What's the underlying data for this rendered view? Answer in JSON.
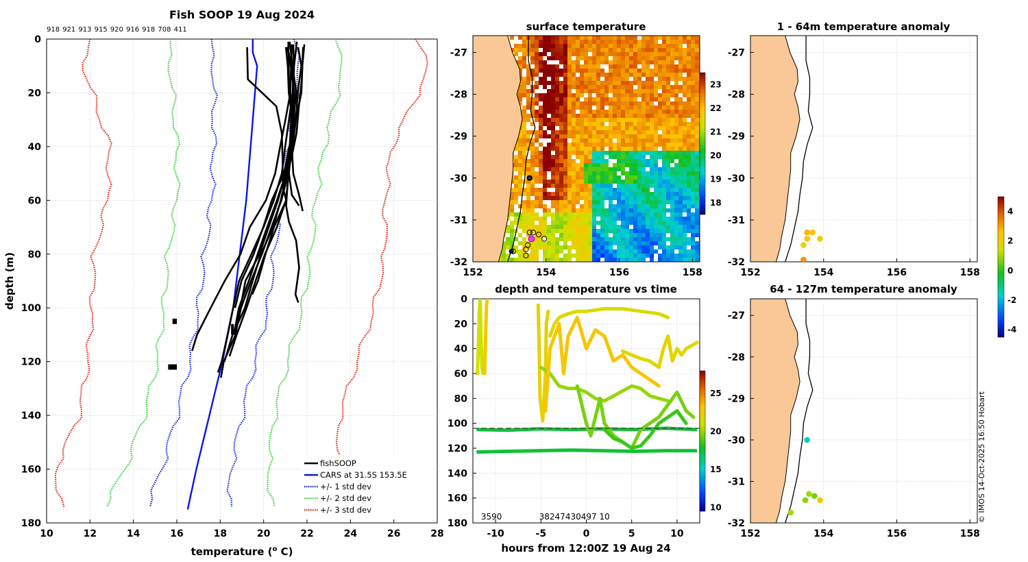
{
  "title": "Fish SOOP 19 Aug 2024",
  "copyright": "© IMOS 14-Oct-2025 16:50 Hobart",
  "chart_data": [
    {
      "id": "profile",
      "type": "line",
      "title": "Fish SOOP 19 Aug 2024",
      "xlabel": "temperature (",
      "xlabel_sup": "o",
      "xlabel_end": " C)",
      "ylabel": "depth (m)",
      "xlim": [
        10,
        28
      ],
      "ylim": [
        180,
        0
      ],
      "xticks": [
        10,
        12,
        14,
        16,
        18,
        20,
        22,
        24,
        26,
        28
      ],
      "yticks": [
        0,
        20,
        40,
        60,
        80,
        100,
        120,
        140,
        160,
        180
      ],
      "top_labels": [
        "918",
        "921",
        "913",
        "915",
        "920",
        "916",
        "918",
        "708",
        "411"
      ],
      "legend": [
        "fishSOOP",
        "CARS at 31.5S 153.5E",
        "+/- 1 std dev",
        "+/- 2 std dev",
        "+/- 3 std dev"
      ],
      "colors": {
        "fish": "#000000",
        "cars": "#0a14e6",
        "std1": "#0a14e6",
        "std2": "#33cc33",
        "std3": "#e61a0a"
      },
      "cars_mean": {
        "depth": [
          0,
          5,
          10,
          20,
          40,
          60,
          80,
          100,
          120,
          140,
          160,
          175
        ],
        "temp": [
          19.5,
          19.5,
          19.7,
          19.6,
          19.4,
          19.2,
          18.9,
          18.6,
          18.1,
          17.5,
          16.9,
          16.5
        ]
      },
      "std_offsets": {
        "depth": [
          0,
          10,
          20,
          40,
          60,
          80,
          100,
          120,
          140,
          160,
          175
        ],
        "s1": [
          1.9,
          2.0,
          1.9,
          1.7,
          1.6,
          1.6,
          1.6,
          1.5,
          1.5,
          1.6,
          1.9
        ],
        "s2": [
          3.8,
          4.0,
          3.8,
          3.4,
          3.2,
          3.3,
          3.2,
          3.0,
          3.0,
          3.3,
          3.9
        ],
        "s3": [
          7.5,
          8.0,
          7.5,
          6.5,
          6.4,
          6.7,
          6.5,
          6.2,
          6.0,
          6.5,
          5.8
        ]
      },
      "fish_profiles": [
        {
          "depth": [
            1,
            10,
            20,
            30,
            40,
            50,
            58,
            62
          ],
          "temp": [
            21.2,
            21.3,
            21.4,
            21.3,
            21.2,
            21.2,
            21.3,
            21.6
          ]
        },
        {
          "depth": [
            1,
            10,
            20,
            30,
            40,
            50,
            58,
            64
          ],
          "temp": [
            21.5,
            21.4,
            21.4,
            21.3,
            21.3,
            21.4,
            21.6,
            21.8
          ]
        },
        {
          "depth": [
            1,
            15,
            25,
            35,
            45,
            55,
            62,
            68,
            75,
            85,
            95,
            98
          ],
          "temp": [
            21.1,
            21.2,
            21.3,
            21.2,
            21.2,
            21.1,
            21.0,
            21.2,
            21.5,
            21.6,
            21.5,
            21.6
          ]
        },
        {
          "depth": [
            2,
            10,
            20,
            30,
            40,
            50,
            60,
            70,
            80,
            90,
            100,
            110,
            116
          ],
          "temp": [
            21.3,
            21.3,
            21.2,
            21.0,
            20.8,
            20.5,
            20.1,
            19.4,
            18.9,
            18.2,
            17.6,
            16.9,
            16.7
          ]
        },
        {
          "depth": [
            2,
            10,
            20,
            30,
            40,
            50,
            60,
            70,
            80,
            90,
            100,
            110,
            120,
            124
          ],
          "temp": [
            21.4,
            21.4,
            21.3,
            21.2,
            21.0,
            20.8,
            20.5,
            20.0,
            19.4,
            18.9,
            18.6,
            18.3,
            18.1,
            17.9
          ]
        },
        {
          "depth": [
            3,
            10,
            20,
            30,
            40,
            50,
            60,
            70,
            80,
            90,
            100,
            110,
            120,
            126
          ],
          "temp": [
            21.1,
            21.3,
            21.5,
            21.4,
            21.2,
            21.0,
            20.7,
            20.2,
            19.8,
            19.2,
            18.9,
            18.7,
            18.2,
            18.0
          ]
        },
        {
          "depth": [
            3,
            10,
            20,
            30,
            40,
            50,
            60,
            70,
            80,
            90,
            100,
            110,
            120
          ],
          "temp": [
            21.6,
            21.7,
            21.6,
            21.5,
            21.3,
            21.1,
            20.8,
            20.4,
            19.9,
            19.5,
            19.1,
            18.6,
            18.2
          ]
        },
        {
          "depth": [
            3,
            10,
            20,
            30,
            40,
            50,
            60,
            70,
            80,
            90,
            100,
            110,
            118
          ],
          "temp": [
            21.0,
            21.1,
            21.2,
            21.3,
            21.3,
            21.2,
            21.0,
            20.6,
            20.1,
            19.6,
            19.2,
            18.8,
            18.4
          ]
        },
        {
          "depth": [
            3,
            15,
            25,
            35,
            45,
            55,
            60,
            70,
            80,
            90,
            95
          ],
          "temp": [
            19.2,
            19.3,
            20.6,
            20.8,
            20.9,
            20.9,
            21.0,
            20.5,
            20.1,
            19.7,
            19.5
          ]
        },
        {
          "depth": [
            3,
            15,
            25,
            35,
            45,
            50,
            60,
            70,
            80,
            90,
            100,
            110
          ],
          "temp": [
            21.8,
            21.8,
            21.6,
            21.5,
            21.3,
            21.0,
            20.6,
            20.2,
            19.7,
            19.3,
            18.9,
            18.6
          ]
        },
        {
          "depth": [
            2,
            10,
            20,
            30,
            40,
            50,
            60,
            70,
            80,
            90,
            100
          ],
          "temp": [
            21.9,
            21.8,
            21.7,
            21.5,
            21.2,
            20.9,
            20.4,
            20.0,
            19.5,
            19.0,
            18.7
          ]
        },
        {
          "depth": [
            5,
            20,
            30,
            40,
            50,
            60,
            70,
            80,
            90,
            100,
            105
          ],
          "temp": [
            21.2,
            21.4,
            21.4,
            21.3,
            21.1,
            20.8,
            20.4,
            19.9,
            19.4,
            19.0,
            18.8
          ]
        }
      ],
      "fish_blobs": [
        {
          "depth": [
            104,
            106
          ],
          "temp": [
            15.8,
            16.0
          ]
        },
        {
          "depth": [
            121,
            123
          ],
          "temp": [
            15.6,
            16.0
          ]
        },
        {
          "depth": [
            106,
            110
          ],
          "temp": [
            18.5,
            18.6
          ]
        }
      ]
    },
    {
      "id": "sst",
      "type": "heatmap",
      "title": "surface temperature",
      "xlim": [
        152,
        158.2
      ],
      "ylim": [
        -32,
        -26.6
      ],
      "xticks": [
        152,
        154,
        156,
        158
      ],
      "yticks": [
        -27,
        -28,
        -29,
        -30,
        -31,
        -32
      ],
      "colorbar": {
        "min": 17.5,
        "max": 23.5,
        "ticks": [
          18,
          19,
          20,
          21,
          22,
          23
        ]
      },
      "stations": [
        {
          "lon": 153.55,
          "lat": -31.3
        },
        {
          "lon": 153.65,
          "lat": -31.3
        },
        {
          "lon": 153.8,
          "lat": -31.35
        },
        {
          "lon": 153.95,
          "lat": -31.45
        },
        {
          "lon": 153.5,
          "lat": -31.6
        },
        {
          "lon": 153.45,
          "lat": -31.7
        },
        {
          "lon": 153.1,
          "lat": -31.75
        },
        {
          "lon": 153.55,
          "lat": -30.0
        },
        {
          "lon": 153.45,
          "lat": -31.85
        }
      ],
      "latest": {
        "lon": 153.6,
        "lat": -31.45
      }
    },
    {
      "id": "depth_time",
      "type": "scatter",
      "title": "depth and temperature vs time",
      "xlabel": "hours from 12:00Z 19 Aug 24",
      "xlim": [
        -12.5,
        12.5
      ],
      "ylim": [
        180,
        0
      ],
      "xticks": [
        -10,
        -5,
        0,
        5,
        10
      ],
      "yticks": [
        0,
        20,
        40,
        60,
        80,
        100,
        120,
        140,
        160,
        180
      ],
      "colorbar": {
        "min": 9.5,
        "max": 28,
        "ticks": [
          10,
          15,
          20,
          25
        ]
      },
      "dashed_depth": 104,
      "bottom_labels": [
        {
          "hour": -11.6,
          "text": "3590"
        },
        {
          "hour": -5.2,
          "text": "38247430497 10"
        }
      ],
      "tracks": [
        {
          "temp": 21.0,
          "hour": [
            -12.0,
            -11.9,
            -11.8,
            -11.7,
            -11.6,
            -11.5,
            -11.4
          ],
          "depth": [
            60,
            40,
            10,
            0,
            30,
            55,
            60
          ]
        },
        {
          "temp": 22.5,
          "hour": [
            -11.2,
            -11.1,
            -11.0,
            -10.9
          ],
          "depth": [
            60,
            30,
            5,
            0
          ]
        },
        {
          "temp": 22.0,
          "hour": [
            -5.3,
            -5.2,
            -5.1,
            -4.8,
            -4.5,
            -4.4,
            -4.2
          ],
          "depth": [
            5,
            40,
            80,
            98,
            60,
            20,
            10
          ]
        },
        {
          "temp": 20.0,
          "hour": [
            -5.0,
            -4.0,
            -3.0,
            -2.0,
            -1.0,
            0,
            1,
            2,
            3,
            4,
            5,
            6,
            7,
            8,
            9
          ],
          "depth": [
            55,
            60,
            70,
            72,
            72,
            75,
            80,
            82,
            78,
            74,
            70,
            72,
            78,
            80,
            82
          ]
        },
        {
          "temp": 21.5,
          "hour": [
            -4.0,
            -3.5,
            -3.0,
            -2.0,
            -1.0,
            0,
            2,
            4,
            6,
            8,
            9
          ],
          "depth": [
            30,
            20,
            15,
            12,
            10,
            10,
            8,
            8,
            10,
            12,
            15
          ]
        },
        {
          "temp": 23.0,
          "hour": [
            -4.5,
            -4.0,
            -3.0,
            -2.5,
            -2.0,
            -1.0,
            0,
            1,
            2,
            3,
            4,
            5,
            6,
            7,
            8
          ],
          "depth": [
            90,
            40,
            20,
            60,
            30,
            15,
            40,
            25,
            30,
            50,
            45,
            55,
            60,
            65,
            70
          ]
        },
        {
          "temp": 19.5,
          "hour": [
            -1.0,
            -0.5,
            0,
            0.5,
            1,
            1.5,
            2,
            2.5,
            3,
            4,
            5,
            6,
            7,
            8,
            9,
            10,
            11,
            11.8
          ],
          "depth": [
            70,
            85,
            100,
            110,
            95,
            80,
            100,
            105,
            110,
            115,
            120,
            105,
            100,
            95,
            85,
            75,
            90,
            95
          ]
        },
        {
          "temp": 21.8,
          "hour": [
            4,
            5,
            6,
            7,
            8,
            8.5,
            9,
            9.5,
            10,
            10.5,
            11,
            11.5,
            12.2
          ],
          "depth": [
            42,
            45,
            48,
            50,
            55,
            40,
            30,
            50,
            40,
            45,
            40,
            38,
            35
          ]
        },
        {
          "temp": 18.5,
          "hour": [
            2,
            3,
            4,
            5,
            6,
            7,
            8,
            9,
            10,
            11
          ],
          "depth": [
            105,
            112,
            115,
            120,
            118,
            110,
            100,
            95,
            90,
            100
          ]
        }
      ],
      "bands": [
        {
          "temp": 17.5,
          "depth": [
            105,
            105.5,
            104.5,
            105,
            104.5,
            105,
            104,
            105
          ]
        },
        {
          "temp": 17.5,
          "depth": [
            123,
            122.5,
            122,
            121.5,
            122,
            122.5,
            122,
            122
          ]
        }
      ]
    },
    {
      "id": "anom_upper",
      "type": "scatter",
      "title": "1 - 64m temperature anomaly",
      "xlim": [
        152,
        158.2
      ],
      "ylim": [
        -32,
        -26.6
      ],
      "xticks": [
        152,
        154,
        156,
        158
      ],
      "yticks": [
        -27,
        -28,
        -29,
        -30,
        -31,
        -32
      ],
      "points": [
        {
          "lon": 153.55,
          "lat": -31.3,
          "anom": 2.8
        },
        {
          "lon": 153.7,
          "lat": -31.3,
          "anom": 2.5
        },
        {
          "lon": 153.9,
          "lat": -31.45,
          "anom": 2.2
        },
        {
          "lon": 153.55,
          "lat": -31.45,
          "anom": 2.6
        },
        {
          "lon": 153.45,
          "lat": -31.6,
          "anom": 1.8
        },
        {
          "lon": 153.45,
          "lat": -31.95,
          "anom": 3.2
        }
      ]
    },
    {
      "id": "anom_lower",
      "type": "scatter",
      "title": "64 - 127m temperature anomaly",
      "xlim": [
        152,
        158.2
      ],
      "ylim": [
        -32,
        -26.6
      ],
      "xticks": [
        152,
        154,
        156,
        158
      ],
      "yticks": [
        -27,
        -28,
        -29,
        -30,
        -31,
        -32
      ],
      "points": [
        {
          "lon": 153.55,
          "lat": -30.0,
          "anom": -1.6
        },
        {
          "lon": 153.6,
          "lat": -31.3,
          "anom": 1.0
        },
        {
          "lon": 153.75,
          "lat": -31.35,
          "anom": 0.6
        },
        {
          "lon": 153.9,
          "lat": -31.45,
          "anom": 2.1
        },
        {
          "lon": 153.5,
          "lat": -31.45,
          "anom": 0.8
        },
        {
          "lon": 153.1,
          "lat": -31.75,
          "anom": 1.0
        }
      ]
    },
    {
      "id": "anom_colorbar",
      "type": "heatmap",
      "colorbar": {
        "min": -4.5,
        "max": 5.0,
        "ticks": [
          4,
          2,
          0,
          -2,
          -4
        ]
      }
    }
  ]
}
